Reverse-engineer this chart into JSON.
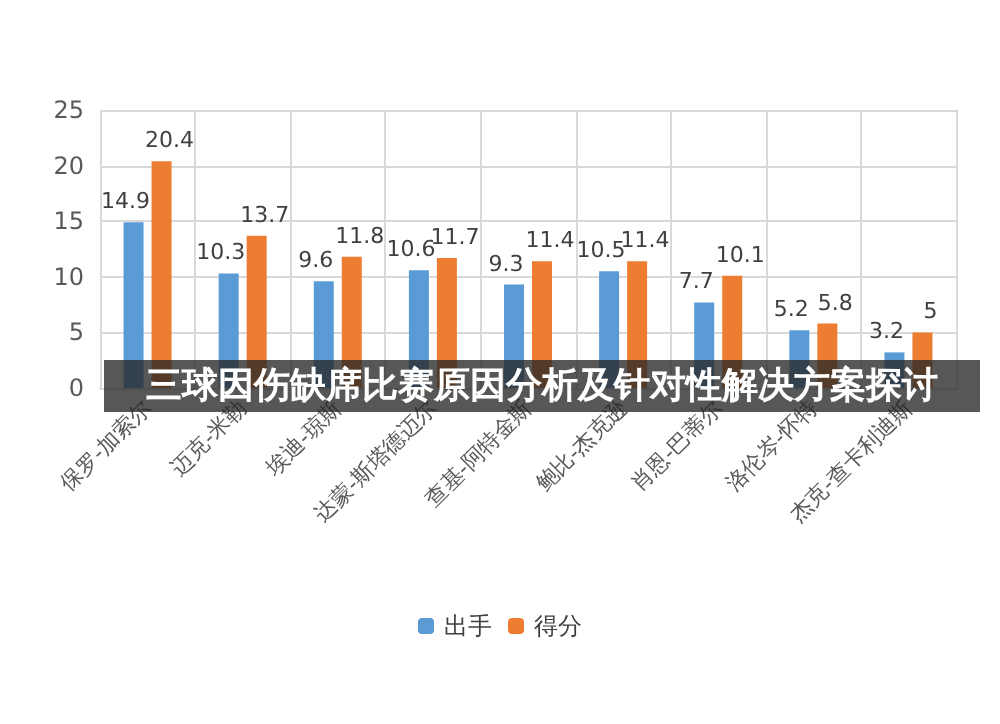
{
  "chart_data": {
    "type": "bar",
    "title": "三球因伤缺席比赛原因分析及针对性解决方案探讨",
    "categories": [
      "保罗-加索尔",
      "迈克-米勒",
      "埃迪-琼斯",
      "达蒙-斯塔德迈尔",
      "查基-阿特金斯",
      "鲍比-杰克逊",
      "肖恩-巴蒂尔",
      "洛伦岑-怀特",
      "杰克-查卡利迪斯"
    ],
    "series": [
      {
        "name": "出手",
        "color": "#5b9bd5",
        "values": [
          14.9,
          10.3,
          9.6,
          10.6,
          9.3,
          10.5,
          7.7,
          5.2,
          3.2
        ]
      },
      {
        "name": "得分",
        "color": "#ed7d31",
        "values": [
          20.4,
          13.7,
          11.8,
          11.7,
          11.4,
          11.4,
          10.1,
          5.8,
          5
        ]
      }
    ],
    "ylim": [
      0,
      25
    ],
    "yticks": [
      0,
      5,
      10,
      15,
      20,
      25
    ],
    "grid": true,
    "legend": "bottom",
    "data_labels": true
  }
}
